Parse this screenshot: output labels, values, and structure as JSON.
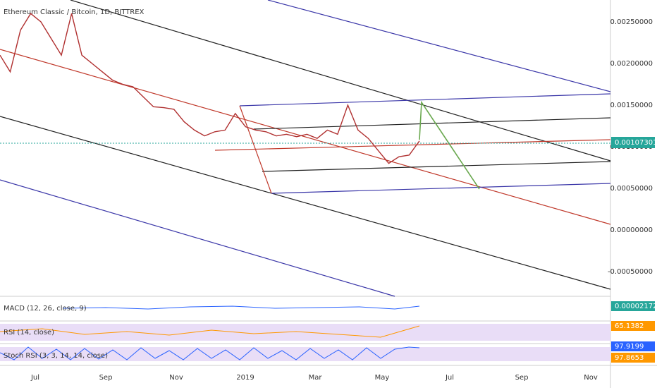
{
  "header": {
    "title": "Ethereum Classic / Bitcoin, 1D, BITTREX"
  },
  "price_axis": [
    "0.00250000",
    "0.00200000",
    "0.00150000",
    "0.00100000",
    "0.00050000",
    "0.00000000",
    "-0.00050000"
  ],
  "current_price": "0.00107301",
  "time_axis": [
    "Jul",
    "Sep",
    "Nov",
    "2019",
    "Mar",
    "May",
    "Jul",
    "Sep",
    "Nov"
  ],
  "price": {
    "values": [
      0.0021,
      0.0019,
      0.0024,
      0.0026,
      0.0025,
      0.0023,
      0.0021,
      0.0026,
      0.0021,
      0.002,
      0.0019,
      0.0018,
      0.00175,
      0.00172,
      0.0016,
      0.00148,
      0.00147,
      0.00145,
      0.0013,
      0.0012,
      0.00113,
      0.00118,
      0.0012,
      0.0014,
      0.00124,
      0.0012,
      0.00118,
      0.00113,
      0.00115,
      0.00112,
      0.00115,
      0.0011,
      0.0012,
      0.00115,
      0.0015,
      0.0012,
      0.0011,
      0.00095,
      0.0008,
      0.00088,
      0.0009,
      0.00107
    ]
  },
  "indicators": [
    {
      "label": "MACD (12, 26, close, 9)",
      "values": [
        "0.00002172"
      ]
    },
    {
      "label": "RSI (14, close)",
      "values": [
        "65.1382"
      ]
    },
    {
      "label": "Stoch RSI (3, 3, 14, 14, close)",
      "values": [
        "97.9199",
        "97.8653"
      ]
    }
  ]
}
